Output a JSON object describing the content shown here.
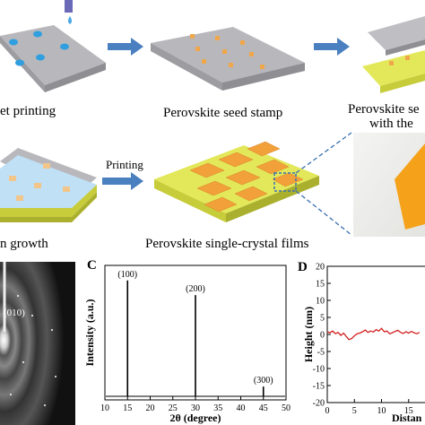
{
  "top_row": {
    "step1_label": "et printing",
    "step2_label": "Perovskite seed stamp",
    "step3_line1": "Perovskite se",
    "step3_line2": "with the"
  },
  "middle_row": {
    "step4_label": "n growth",
    "arrow_label": "Printing",
    "step5_label": "Perovskite single-crystal films"
  },
  "panel_b": {
    "label": "(010)"
  },
  "chart_data": [
    {
      "type": "line",
      "panel_letter": "C",
      "title": "",
      "xlabel": "2θ (degree)",
      "ylabel": "Intensity (a.u.)",
      "xlim": [
        10,
        50
      ],
      "xticks": [
        10,
        15,
        20,
        25,
        30,
        35,
        40,
        45,
        50
      ],
      "peaks": [
        {
          "x": 15,
          "label": "(100)",
          "height": 0.95
        },
        {
          "x": 30,
          "label": "(200)",
          "height": 0.83
        },
        {
          "x": 45,
          "label": "(300)",
          "height": 0.08
        }
      ]
    },
    {
      "type": "line",
      "panel_letter": "D",
      "title": "",
      "xlabel": "Distan",
      "ylabel": "Height (nm)",
      "ylim": [
        -20,
        20
      ],
      "yticks": [
        20,
        15,
        10,
        5,
        0,
        -5,
        -10,
        -15,
        -20
      ],
      "xticks": [
        0,
        5,
        10,
        15
      ],
      "x": [
        0,
        0.5,
        1,
        1.5,
        2,
        2.5,
        3,
        3.5,
        4,
        4.5,
        5,
        5.5,
        6,
        6.5,
        7,
        7.5,
        8,
        8.5,
        9,
        9.5,
        10,
        10.5,
        11,
        11.5,
        12,
        12.5,
        13,
        13.5,
        14,
        14.5,
        15,
        15.5,
        16,
        16.5,
        17
      ],
      "y": [
        0.8,
        0.5,
        1.0,
        0.2,
        0.6,
        -0.3,
        0.4,
        -0.6,
        -1.5,
        -1.2,
        -0.4,
        0.2,
        0.4,
        0.8,
        1.3,
        0.6,
        1.0,
        0.7,
        1.4,
        1.0,
        1.8,
        0.8,
        1.0,
        0.2,
        0.5,
        0.9,
        1.2,
        0.6,
        0.3,
        0.8,
        0.4,
        0.9,
        0.5,
        0.2,
        0.6
      ]
    }
  ]
}
